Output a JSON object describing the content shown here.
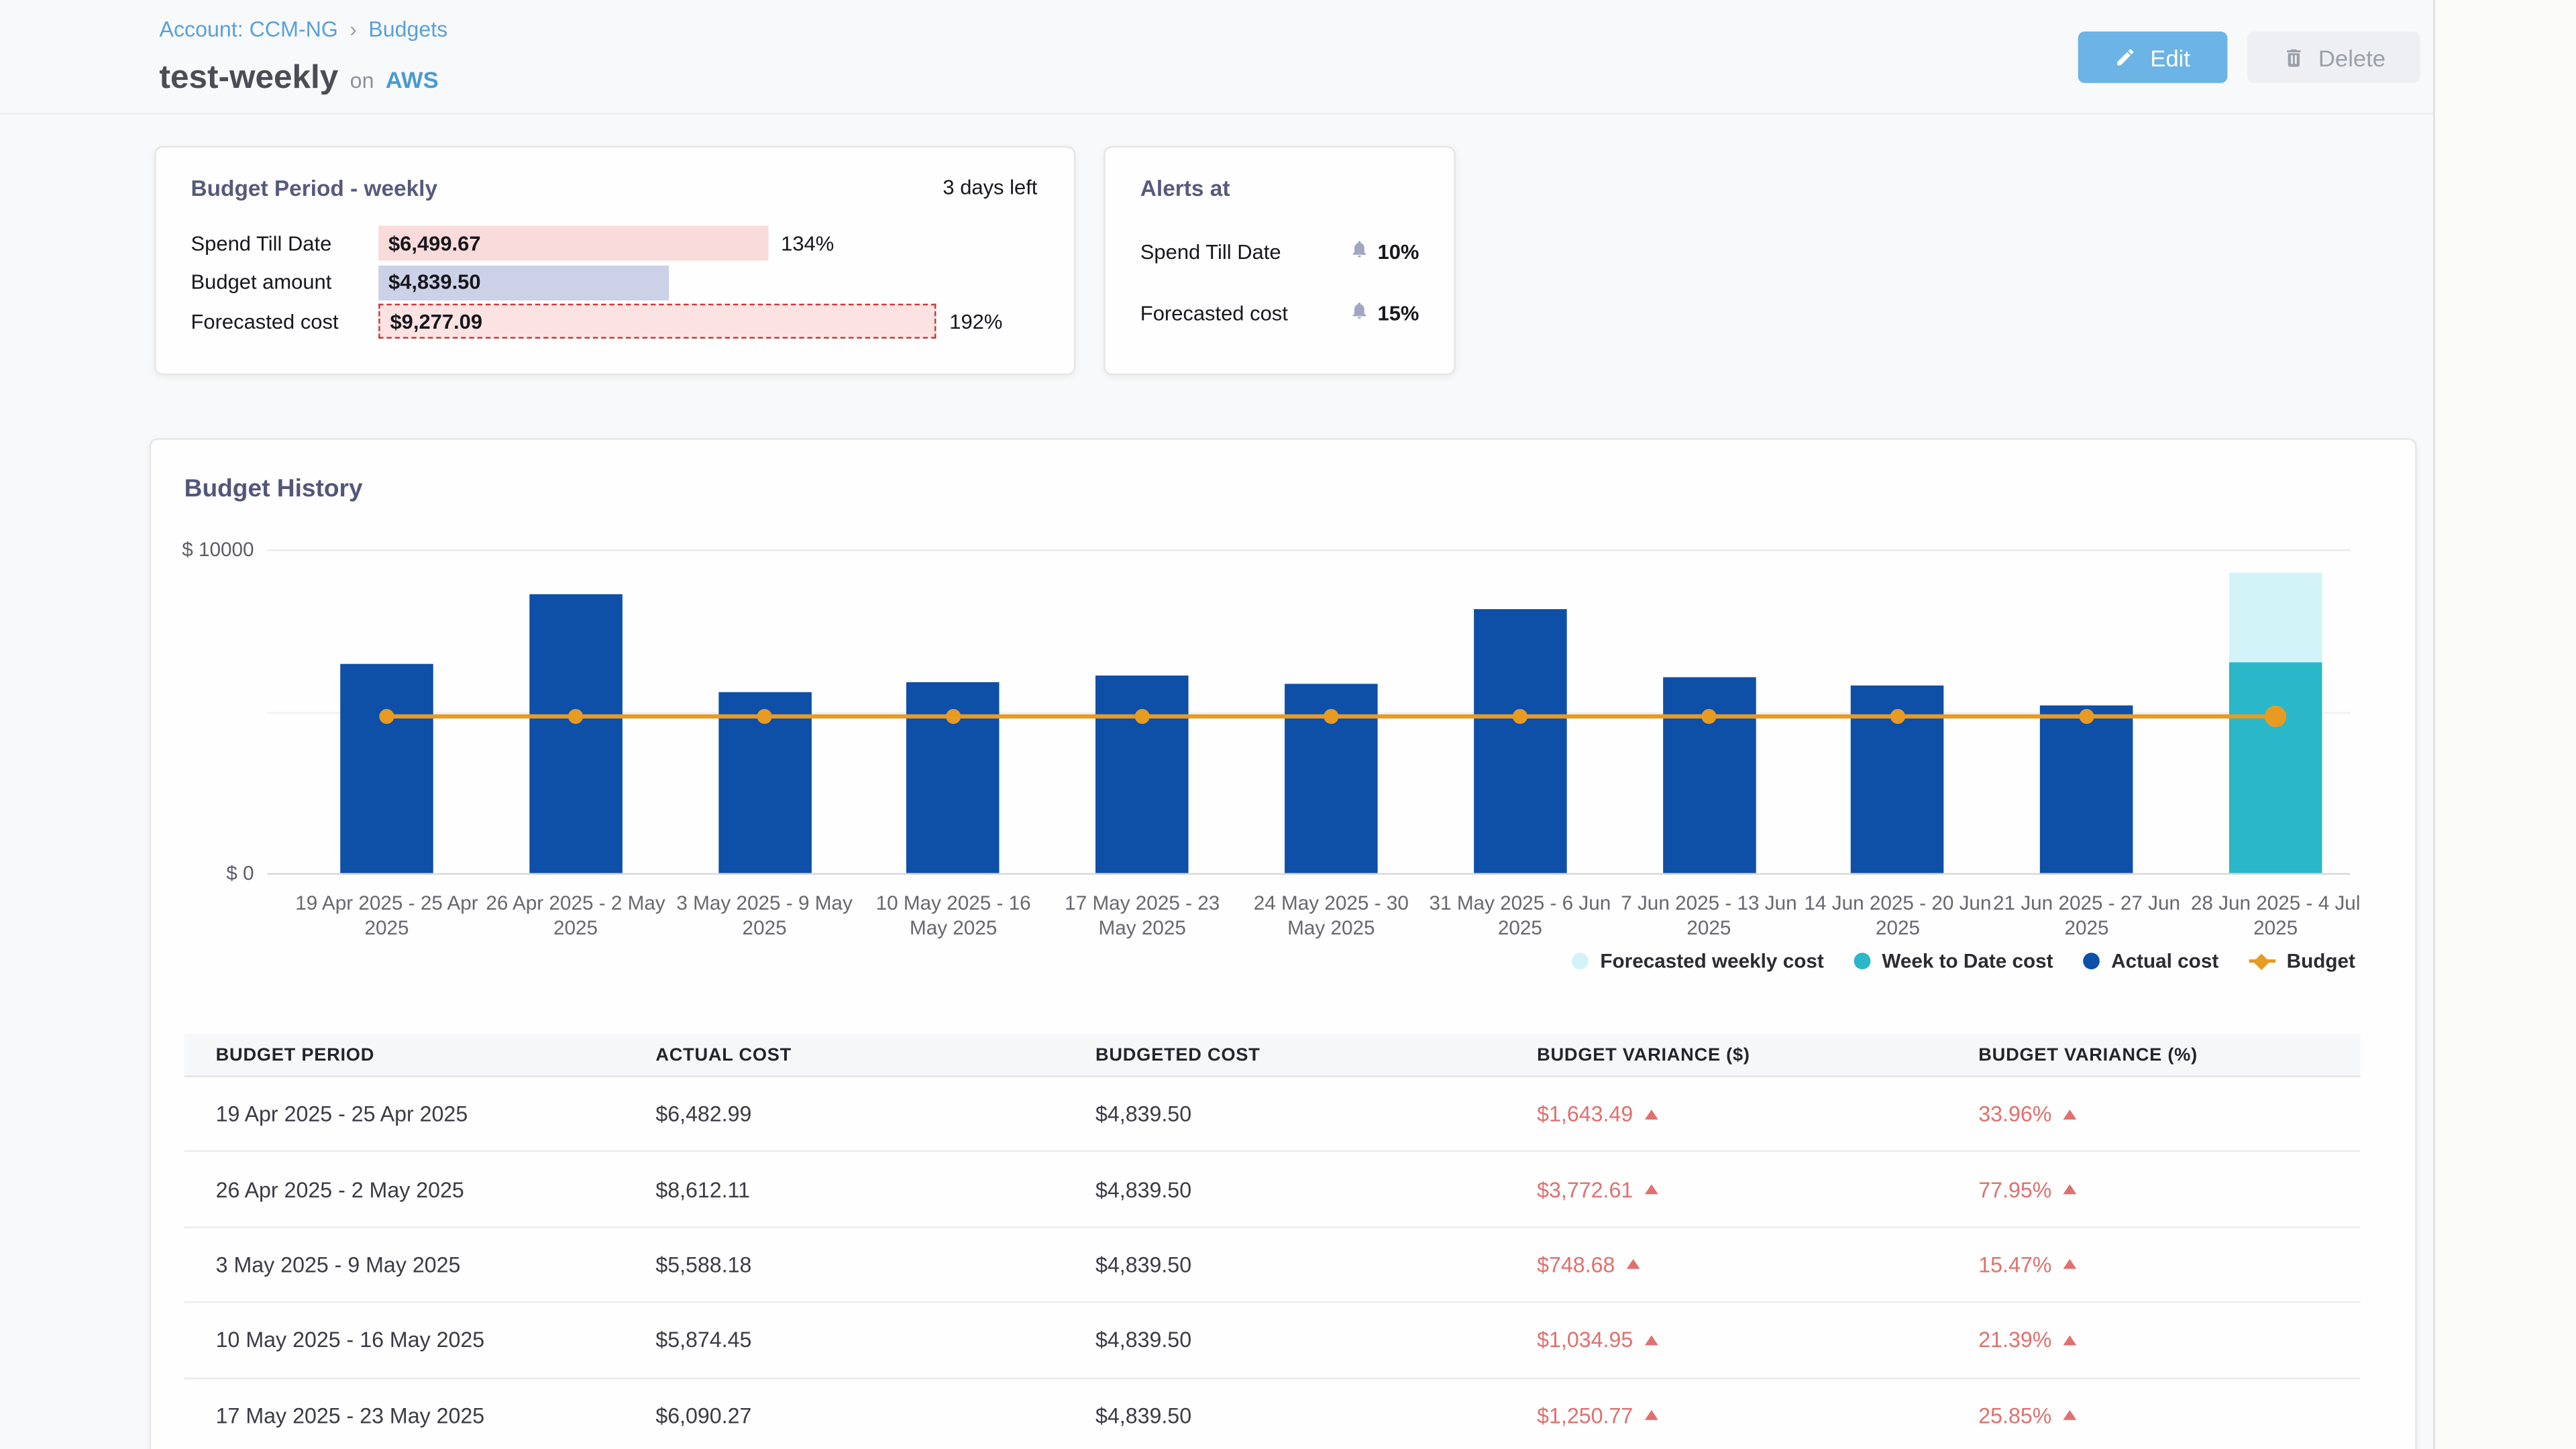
{
  "breadcrumb": {
    "account_label": "Account: CCM-NG",
    "separator": "›",
    "current": "Budgets"
  },
  "header": {
    "title": "test-weekly",
    "connector": "on",
    "cloud_provider": "AWS",
    "edit_button": "Edit",
    "delete_button": "Delete"
  },
  "budget_period_card": {
    "title": "Budget Period - weekly",
    "time_remaining": "3 days left",
    "rows": [
      {
        "label": "Spend Till Date",
        "amount": "$6,499.67",
        "percent_of_budget": "134%",
        "bar_pct": 134,
        "style": "spend"
      },
      {
        "label": "Budget amount",
        "amount": "$4,839.50",
        "percent_of_budget": "",
        "bar_pct": 100,
        "style": "budget"
      },
      {
        "label": "Forecasted cost",
        "amount": "$9,277.09",
        "percent_of_budget": "192%",
        "bar_pct": 192,
        "style": "forecast"
      }
    ]
  },
  "alerts_card": {
    "title": "Alerts at",
    "alerts": [
      {
        "label": "Spend Till Date",
        "threshold": "10%"
      },
      {
        "label": "Forecasted cost",
        "threshold": "15%"
      }
    ]
  },
  "budget_history": {
    "title": "Budget History"
  },
  "chart_data": {
    "type": "bar",
    "title": "Budget History",
    "categories": [
      "19 Apr 2025 - 25 Apr 2025",
      "26 Apr 2025 - 2 May 2025",
      "3 May 2025 - 9 May 2025",
      "10 May 2025 - 16 May 2025",
      "17 May 2025 - 23 May 2025",
      "24 May 2025 - 30 May 2025",
      "31 May 2025 - 6 Jun 2025",
      "7 Jun 2025 - 13 Jun 2025",
      "14 Jun 2025 - 20 Jun 2025",
      "21 Jun 2025 - 27 Jun 2025",
      "28 Jun 2025 - 4 Jul 2025"
    ],
    "series": [
      {
        "name": "Actual cost",
        "type": "bar",
        "color": "#0e4fa8",
        "values": [
          6482.99,
          8612.11,
          5588.18,
          5874.45,
          6090.27,
          5850,
          8130,
          6060,
          5810,
          5170,
          null
        ]
      },
      {
        "name": "Week to Date cost",
        "type": "bar",
        "color": "#2ab7c9",
        "values": [
          null,
          null,
          null,
          null,
          null,
          null,
          null,
          null,
          null,
          null,
          6499.67
        ]
      },
      {
        "name": "Forecasted weekly cost",
        "type": "bar",
        "color": "#d2f3f7",
        "values": [
          null,
          null,
          null,
          null,
          null,
          null,
          null,
          null,
          null,
          null,
          9277.09
        ]
      },
      {
        "name": "Budget",
        "type": "line",
        "color": "#e79b22",
        "values": [
          4839.5,
          4839.5,
          4839.5,
          4839.5,
          4839.5,
          4839.5,
          4839.5,
          4839.5,
          4839.5,
          4839.5,
          4839.5
        ]
      }
    ],
    "ylim": [
      0,
      10000
    ],
    "yticks": [
      {
        "value": 10000,
        "label": "$ 10000"
      },
      {
        "value": 0,
        "label": "$ 0"
      }
    ],
    "grid": "horizontal",
    "legend_position": "bottom-right",
    "legend": [
      {
        "label": "Forecasted weekly cost",
        "color": "#d2f3f7",
        "marker": "dot"
      },
      {
        "label": "Week to Date cost",
        "color": "#2ab7c9",
        "marker": "dot"
      },
      {
        "label": "Actual cost",
        "color": "#0e4fa8",
        "marker": "dot"
      },
      {
        "label": "Budget",
        "color": "#e79b22",
        "marker": "line"
      }
    ]
  },
  "table": {
    "columns": [
      "BUDGET PERIOD",
      "ACTUAL COST",
      "BUDGETED COST",
      "BUDGET VARIANCE ($)",
      "BUDGET VARIANCE (%)"
    ],
    "rows": [
      {
        "period": "19 Apr 2025 - 25 Apr 2025",
        "actual_cost": "$6,482.99",
        "budgeted_cost": "$4,839.50",
        "variance_usd": "$1,643.49",
        "variance_pct": "33.96%"
      },
      {
        "period": "26 Apr 2025 - 2 May 2025",
        "actual_cost": "$8,612.11",
        "budgeted_cost": "$4,839.50",
        "variance_usd": "$3,772.61",
        "variance_pct": "77.95%"
      },
      {
        "period": "3 May 2025 - 9 May 2025",
        "actual_cost": "$5,588.18",
        "budgeted_cost": "$4,839.50",
        "variance_usd": "$748.68",
        "variance_pct": "15.47%"
      },
      {
        "period": "10 May 2025 - 16 May 2025",
        "actual_cost": "$5,874.45",
        "budgeted_cost": "$4,839.50",
        "variance_usd": "$1,034.95",
        "variance_pct": "21.39%"
      },
      {
        "period": "17 May 2025 - 23 May 2025",
        "actual_cost": "$6,090.27",
        "budgeted_cost": "$4,839.50",
        "variance_usd": "$1,250.77",
        "variance_pct": "25.85%"
      }
    ]
  },
  "colors": {
    "accent_blue": "#6cb3e6",
    "bar_blue": "#0e4fa8",
    "teal": "#2ab7c9",
    "light_cyan": "#d2f3f7",
    "budget_orange": "#e79b22",
    "variance_red": "#e0706e"
  }
}
